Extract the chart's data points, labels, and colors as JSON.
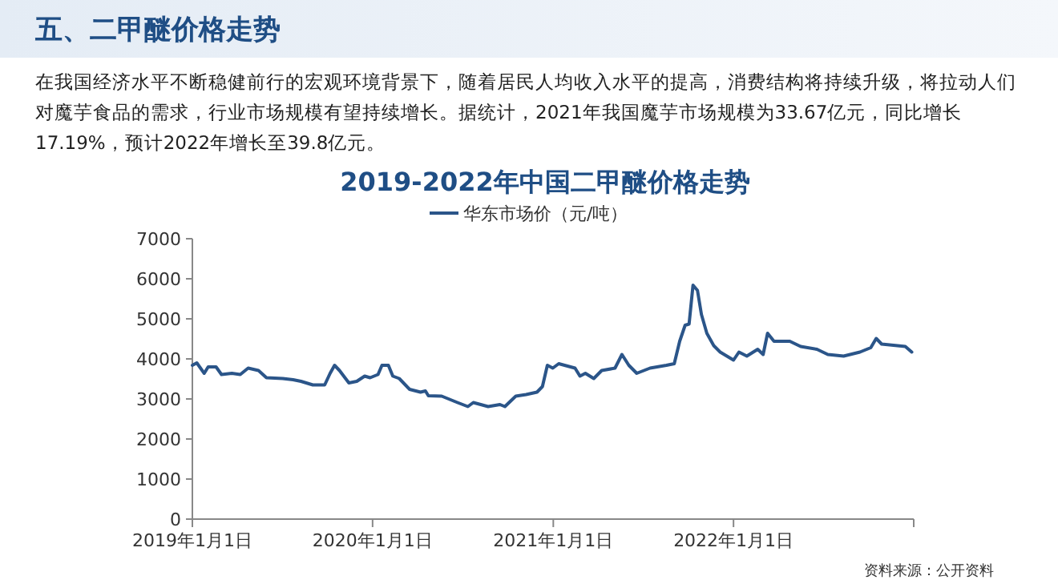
{
  "chart_data": {
    "type": "line",
    "title": "2019-2022年中国二甲醚价格走势",
    "annotations": [
      "五、二甲醚价格走势",
      "在我国经济水平不断稳健前行的宏观环境背景下，随着居民人均收入水平的提高，消费结构将持续升级，将拉动人们对魔芋食品的需求，行业市场规模有望持续增长。据统计，2021年我国魔芋市场规模为33.67亿元，同比增长17.19%，预计2022年增长至39.8亿元。",
      "资料来源：公开资料"
    ],
    "legend": "top",
    "grid": false,
    "marker": "none",
    "line_style": "solid",
    "xlim": [
      "2019-01-01",
      "2023-01-01"
    ],
    "xticks": [
      {
        "value": "2019-01-01",
        "label": "2019年1月1日"
      },
      {
        "value": "2020-01-01",
        "label": "2020年1月1日"
      },
      {
        "value": "2021-01-01",
        "label": "2021年1月1日"
      },
      {
        "value": "2022-01-01",
        "label": "2022年1月1日"
      },
      {
        "value": "2023-01-01",
        "label": null
      }
    ],
    "ylim": [
      0,
      7000
    ],
    "yticks": [
      0,
      1000,
      2000,
      3000,
      4000,
      5000,
      6000,
      7000
    ],
    "series": [
      {
        "name": "华东市场价（元/吨）",
        "color": "#2b5589",
        "x": [
          "2019-01-01",
          "2019-01-10",
          "2019-01-25",
          "2019-02-02",
          "2019-02-18",
          "2019-03-01",
          "2019-03-22",
          "2019-04-08",
          "2019-04-24",
          "2019-05-15",
          "2019-05-31",
          "2019-07-03",
          "2019-07-24",
          "2019-08-09",
          "2019-09-02",
          "2019-09-26",
          "2019-10-07",
          "2019-10-16",
          "2019-10-26",
          "2019-11-14",
          "2019-11-30",
          "2019-12-16",
          "2019-12-27",
          "2020-01-12",
          "2020-01-20",
          "2020-02-02",
          "2020-02-11",
          "2020-02-24",
          "2020-03-16",
          "2020-04-07",
          "2020-04-17",
          "2020-04-23",
          "2020-05-20",
          "2020-06-21",
          "2020-07-12",
          "2020-07-23",
          "2020-08-22",
          "2020-09-15",
          "2020-09-25",
          "2020-10-17",
          "2020-11-07",
          "2020-11-29",
          "2020-12-10",
          "2020-12-20",
          "2020-12-31",
          "2021-01-12",
          "2021-02-14",
          "2021-02-24",
          "2021-03-07",
          "2021-03-24",
          "2021-04-09",
          "2021-05-06",
          "2021-05-20",
          "2021-06-03",
          "2021-06-19",
          "2021-07-16",
          "2021-08-18",
          "2021-09-03",
          "2021-09-14",
          "2021-09-25",
          "2021-10-03",
          "2021-10-11",
          "2021-10-20",
          "2021-10-28",
          "2021-11-08",
          "2021-11-22",
          "2021-12-05",
          "2022-01-01",
          "2022-01-12",
          "2022-01-28",
          "2022-02-19",
          "2022-03-02",
          "2022-03-11",
          "2022-03-24",
          "2022-04-25",
          "2022-05-17",
          "2022-06-19",
          "2022-07-11",
          "2022-08-12",
          "2022-09-14",
          "2022-10-06",
          "2022-10-17",
          "2022-10-28",
          "2022-11-29",
          "2022-12-15",
          "2022-12-28"
        ],
        "values": [
          3840,
          3900,
          3640,
          3800,
          3800,
          3610,
          3640,
          3610,
          3770,
          3710,
          3530,
          3510,
          3480,
          3440,
          3350,
          3350,
          3640,
          3840,
          3710,
          3400,
          3440,
          3570,
          3530,
          3610,
          3840,
          3840,
          3570,
          3510,
          3240,
          3170,
          3200,
          3080,
          3070,
          2910,
          2810,
          2910,
          2810,
          2860,
          2810,
          3070,
          3110,
          3170,
          3310,
          3840,
          3770,
          3880,
          3770,
          3570,
          3640,
          3510,
          3710,
          3770,
          4110,
          3840,
          3640,
          3770,
          3840,
          3880,
          4440,
          4840,
          4870,
          5840,
          5710,
          5110,
          4640,
          4330,
          4170,
          3970,
          4170,
          4070,
          4240,
          4110,
          4640,
          4440,
          4440,
          4310,
          4240,
          4110,
          4070,
          4170,
          4280,
          4510,
          4370,
          4330,
          4310,
          4170
        ]
      }
    ]
  }
}
